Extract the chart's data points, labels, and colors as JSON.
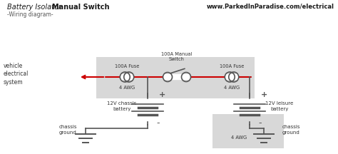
{
  "title_italic": "Battery Isolator ",
  "title_bold": "Manual Switch",
  "subtitle": "-Wiring diagram-",
  "website": "www.ParkedInParadise.com/electrical",
  "bg_color": "#ffffff",
  "box_color": "#d8d8d8",
  "wire_color": "#555555",
  "red_wire_color": "#cc0000",
  "fuse_color": "#555555",
  "label_color": "#333333",
  "label_fuse_left": "100A Fuse",
  "label_switch": "100A Manual\nSwitch",
  "label_fuse_right": "100A Fuse",
  "label_awg_left": "4 AWG",
  "label_awg_right": "4 AWG",
  "label_awg_bottom": "4 AWG",
  "label_vehicle": "vehicle\nelectrical\nsystem",
  "label_chassis_battery": "12V chassis\nbattery",
  "label_leisure_battery": "12V leisure\nbattery",
  "label_chassis_ground_left": "chassis\nground",
  "label_chassis_ground_right": "chassis\nground"
}
